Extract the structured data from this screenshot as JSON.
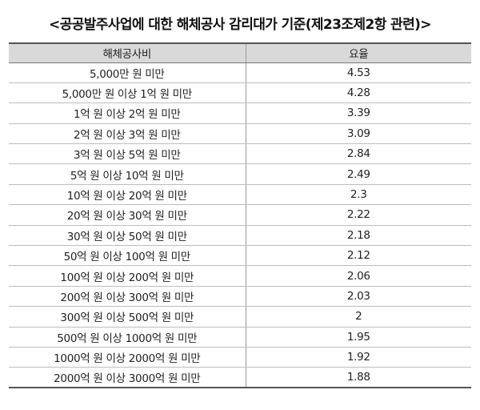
{
  "title": "<공공발주사업에 대한 해체공사 감리대가 기준(제23조제2항 관련)>",
  "table": {
    "headers": [
      "해체공사비",
      "요율"
    ],
    "rows": [
      {
        "range": "5,000만 원 미만",
        "rate": "4.53"
      },
      {
        "range": "5,000만 원 이상 1억 원 미만",
        "rate": "4.28"
      },
      {
        "range": "1억 원 이상 2억 원 미만",
        "rate": "3.39"
      },
      {
        "range": "2억 원 이상 3억 원 미만",
        "rate": "3.09"
      },
      {
        "range": "3억 원 이상 5억 원 미만",
        "rate": "2.84"
      },
      {
        "range": "5억 원 이상 10억 원 미만",
        "rate": "2.49"
      },
      {
        "range": "10억 원 이상 20억 원 미만",
        "rate": "2.3"
      },
      {
        "range": "20억 원 이상 30억 원 미만",
        "rate": "2.22"
      },
      {
        "range": "30억 원 이상 50억 원 미만",
        "rate": "2.18"
      },
      {
        "range": "50억 원 이상 100억 원 미만",
        "rate": "2.12"
      },
      {
        "range": "100억 원 이상 200억 원 미만",
        "rate": "2.06"
      },
      {
        "range": "200억 원 이상 300억 원 미만",
        "rate": "2.03"
      },
      {
        "range": "300억 원 이상 500억 원 미만",
        "rate": "2"
      },
      {
        "range": "500억 원 이상 1000억 원 미만",
        "rate": "1.95"
      },
      {
        "range": "1000억 원 이상 2000억 원 미만",
        "rate": "1.92"
      },
      {
        "range": "2000억 원 이상 3000억 원 미만",
        "rate": "1.88"
      }
    ]
  },
  "colors": {
    "header_background": "#d9d9d9",
    "rule_dark": "#555555",
    "rule_light": "#bdbdbd"
  }
}
